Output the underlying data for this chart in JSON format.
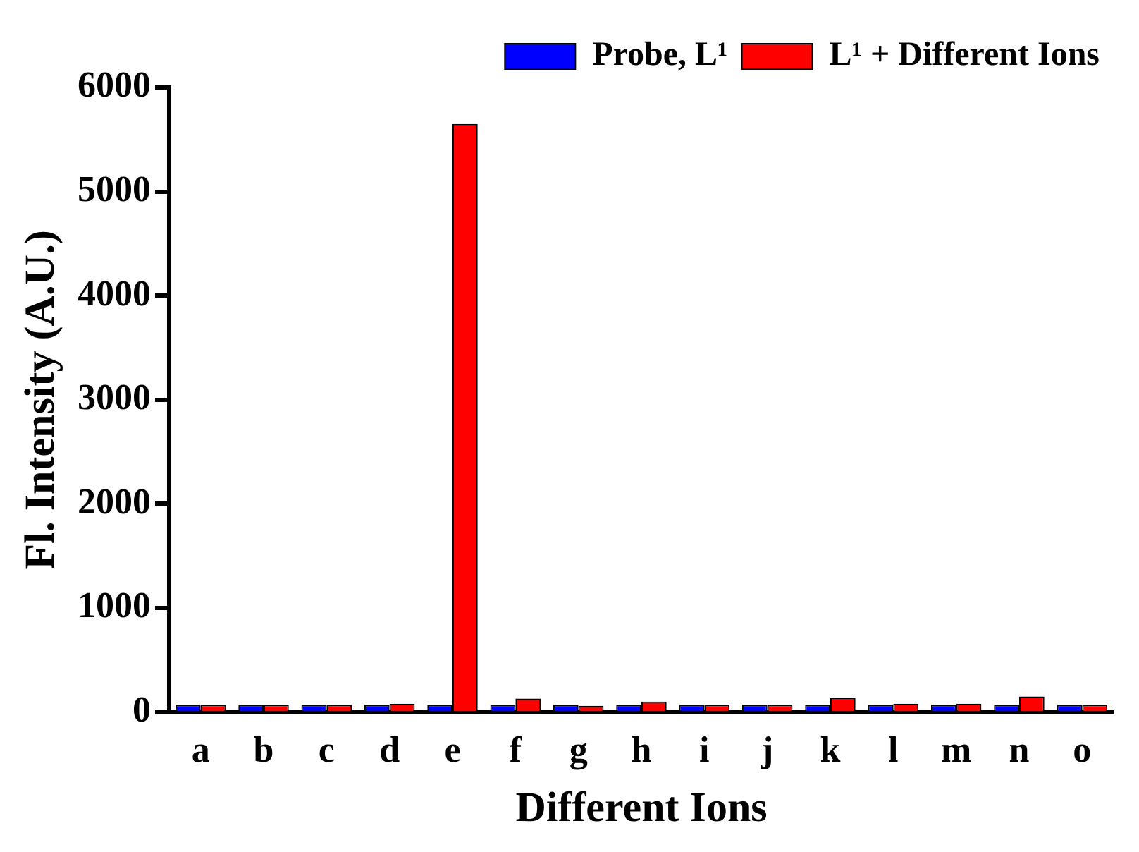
{
  "chart_data": {
    "type": "bar",
    "xlabel": "Different Ions",
    "ylabel": "Fl. Intensity (A.U.)",
    "categories": [
      "a",
      "b",
      "c",
      "d",
      "e",
      "f",
      "g",
      "h",
      "i",
      "j",
      "k",
      "l",
      "m",
      "n",
      "o"
    ],
    "series": [
      {
        "name": "Probe, L¹",
        "color": "#0000ff",
        "values": [
          70,
          70,
          70,
          70,
          70,
          70,
          70,
          70,
          70,
          70,
          70,
          70,
          70,
          70,
          70
        ]
      },
      {
        "name": "L¹ + Different Ions",
        "color": "#ff0000",
        "values": [
          70,
          70,
          70,
          80,
          5650,
          130,
          60,
          100,
          70,
          70,
          140,
          80,
          80,
          150,
          70
        ]
      }
    ],
    "ylim": [
      0,
      6000
    ],
    "yticks": [
      0,
      1000,
      2000,
      3000,
      4000,
      5000,
      6000
    ],
    "grid": false,
    "legend": "top right"
  }
}
